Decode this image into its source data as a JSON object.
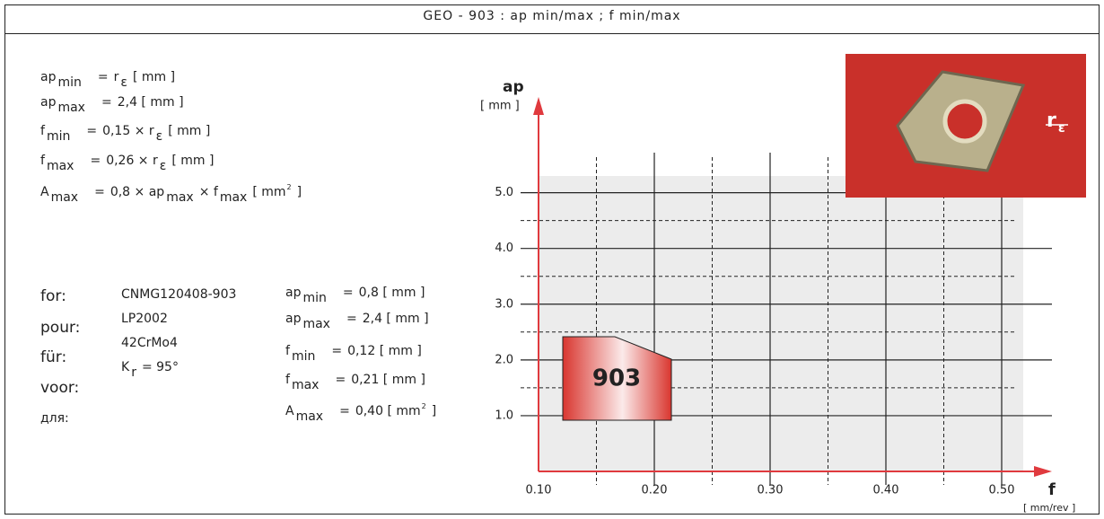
{
  "header": {
    "title": "GEO - 903 : ap min/max ; f min/max"
  },
  "formulas": [
    [
      {
        "text": "ap"
      },
      {
        "sub": "min"
      },
      {
        "text": "="
      },
      {
        "text": "r"
      },
      {
        "sub": "ε"
      },
      {
        "text": "[ mm ]"
      }
    ],
    [
      {
        "text": "ap"
      },
      {
        "sub": "max"
      },
      {
        "text": "="
      },
      {
        "text": "2,4  [ mm ]"
      }
    ],
    [
      {
        "text": "f"
      },
      {
        "sub": "min"
      },
      {
        "text": "="
      },
      {
        "text": "0,15 × r"
      },
      {
        "sub": "ε"
      },
      {
        "text": "[ mm ]"
      }
    ],
    [
      {
        "text": "f"
      },
      {
        "sub": "max"
      },
      {
        "text": "="
      },
      {
        "text": "0,26 × r"
      },
      {
        "sub": "ε"
      },
      {
        "text": "[ mm ]"
      }
    ],
    [
      {
        "text": "A"
      },
      {
        "sub": "max"
      },
      {
        "text": "="
      },
      {
        "text": "0,8 × ap"
      },
      {
        "sub": "max"
      },
      {
        "text": "× f"
      },
      {
        "sub": "max"
      },
      {
        "text": "[ mm"
      },
      {
        "sup": "2"
      },
      {
        "text": "]"
      }
    ]
  ],
  "languages": [
    "for:",
    "pour:",
    "für:",
    "voor:",
    "для:"
  ],
  "specs": [
    [
      {
        "text": "CNMG120408-903"
      }
    ],
    [
      {
        "text": "LP2002"
      }
    ],
    [
      {
        "text": "42CrMo4"
      }
    ],
    [
      {
        "text": "K"
      },
      {
        "sub": "r"
      },
      {
        "text": "= 95°"
      }
    ]
  ],
  "example": [
    [
      {
        "text": "ap"
      },
      {
        "sub": "min"
      },
      {
        "text": "="
      },
      {
        "text": "0,8   [ mm ]"
      }
    ],
    [
      {
        "text": "ap"
      },
      {
        "sub": "max"
      },
      {
        "text": "="
      },
      {
        "text": "2,4   [ mm ]"
      }
    ],
    [
      {
        "text": "f"
      },
      {
        "sub": "min"
      },
      {
        "text": "="
      },
      {
        "text": "0,12 [ mm ]"
      }
    ],
    [
      {
        "text": "f"
      },
      {
        "sub": "max"
      },
      {
        "text": "="
      },
      {
        "text": "0,21 [ mm ]"
      }
    ],
    [
      {
        "text": "A"
      },
      {
        "sub": "max"
      },
      {
        "text": "="
      },
      {
        "text": "0,40 [ mm"
      },
      {
        "sup": "2"
      },
      {
        "text": "]"
      }
    ]
  ],
  "chart": {
    "y_label": "ap",
    "y_unit": "[ mm ]",
    "x_label": "f",
    "x_unit": "[ mm/rev ]",
    "xlim": [
      0.1,
      0.54
    ],
    "ylim": [
      0,
      5.3
    ],
    "xticks": [
      {
        "value": 0.1,
        "label": "0.10"
      },
      {
        "value": 0.2,
        "label": "0.20"
      },
      {
        "value": 0.3,
        "label": "0.30"
      },
      {
        "value": 0.4,
        "label": "0.40"
      },
      {
        "value": 0.5,
        "label": "0.50"
      }
    ],
    "yticks": [
      {
        "value": 1,
        "label": "1.0"
      },
      {
        "value": 2,
        "label": "2.0"
      },
      {
        "value": 3,
        "label": "3.0"
      },
      {
        "value": 4,
        "label": "4.0"
      },
      {
        "value": 5,
        "label": "5.0"
      }
    ],
    "minor_xticks": [
      0.15,
      0.25,
      0.35,
      0.45
    ],
    "minor_yticks": [
      1.5,
      2.5,
      3.5,
      4.5
    ],
    "badge": "903",
    "image_label": [
      {
        "text": "r"
      },
      {
        "sub": "ε"
      }
    ]
  }
}
